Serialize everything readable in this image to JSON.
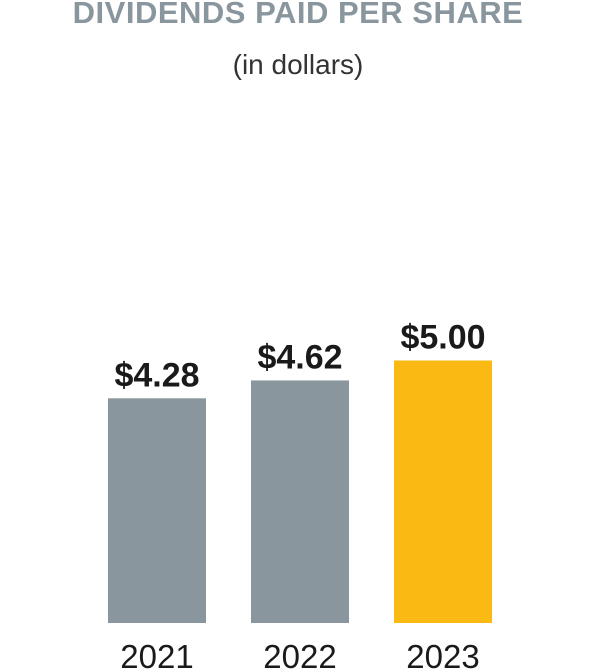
{
  "chart_data": {
    "type": "bar",
    "title": "DIVIDENDS PAID PER SHARE",
    "subtitle": "(in dollars)",
    "categories": [
      "2021",
      "2022",
      "2023"
    ],
    "values": [
      4.28,
      4.62,
      5.0
    ],
    "data_labels": [
      "$4.28",
      "$4.62",
      "$5.00"
    ],
    "bar_colors": [
      "#8a969e",
      "#8a969e",
      "#fbb913"
    ],
    "xlabel": "",
    "ylabel": "",
    "ylim": [
      0,
      5.0
    ],
    "grid": false,
    "legend": "none"
  },
  "colors": {
    "title": "#8a969e",
    "bar_default": "#8a969e",
    "bar_highlight": "#fbb913",
    "label": "#1a1a1a"
  }
}
